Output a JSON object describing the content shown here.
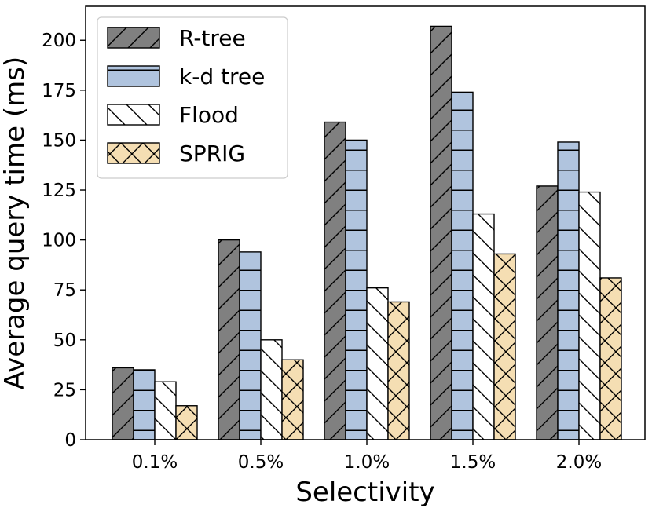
{
  "chart_data": {
    "type": "bar",
    "title": "",
    "xlabel": "Selectivity",
    "ylabel": "Average query time (ms)",
    "categories": [
      "0.1%",
      "0.5%",
      "1.0%",
      "1.5%",
      "2.0%"
    ],
    "ylim": [
      0,
      217
    ],
    "yticks": [
      0,
      25,
      50,
      75,
      100,
      125,
      150,
      175,
      200
    ],
    "grid": false,
    "legend_position": "top-left",
    "series": [
      {
        "name": "R-tree",
        "color": "#808080",
        "hatch": "diagonal-forward",
        "values": [
          36,
          100,
          159,
          207,
          127
        ]
      },
      {
        "name": "k-d tree",
        "color": "#b0c4de",
        "hatch": "horizontal",
        "values": [
          35,
          94,
          150,
          174,
          149
        ]
      },
      {
        "name": "Flood",
        "color": "#ffffff",
        "hatch": "diagonal-back",
        "values": [
          29,
          50,
          76,
          113,
          124
        ]
      },
      {
        "name": "SPRIG",
        "color": "#f5deb3",
        "hatch": "cross",
        "values": [
          17,
          40,
          69,
          93,
          81
        ]
      }
    ]
  }
}
